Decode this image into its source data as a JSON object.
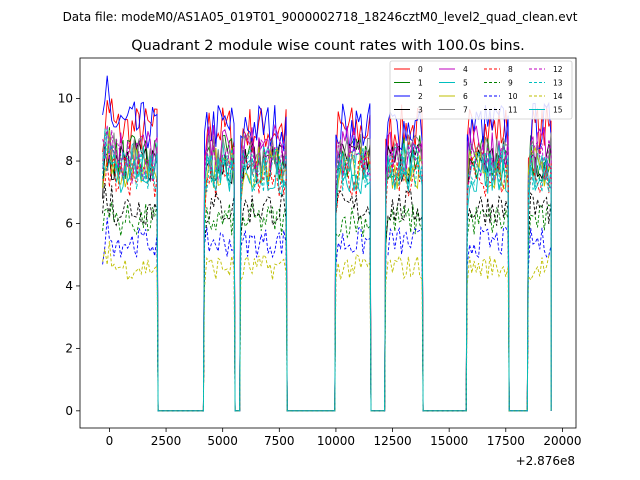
{
  "suptitle": "Data file: modeM0/AS1A05_019T01_9000002718_18246cztM0_level2_quad_clean.evt",
  "chart_data": {
    "type": "line",
    "title": "Quadrant 2 module wise count rates with 100.0s bins.",
    "xlabel": "",
    "ylabel": "",
    "x_offset_label": "+2.876e8",
    "xlim": [
      -1300,
      20600
    ],
    "ylim": [
      -0.55,
      11.3
    ],
    "xticks": [
      0,
      2500,
      5000,
      7500,
      10000,
      12500,
      15000,
      17500,
      20000
    ],
    "yticks": [
      0,
      2,
      4,
      6,
      8,
      10
    ],
    "grid": false,
    "legend_position": "top-right",
    "legend_columns": 4,
    "segments": [
      {
        "start": -300,
        "end": 2100,
        "drop_to": 2150
      },
      {
        "start": 4200,
        "end": 5500,
        "drop_to": 5550
      },
      {
        "start": 5800,
        "end": 7800,
        "drop_to": 7850
      },
      {
        "start": 10000,
        "end": 11500,
        "drop_to": 11550
      },
      {
        "start": 12200,
        "end": 13800,
        "drop_to": 13850
      },
      {
        "start": 15800,
        "end": 17600,
        "drop_to": 17650
      },
      {
        "start": 18500,
        "end": 19500,
        "drop_to": 19500
      }
    ],
    "series": [
      {
        "name": "0",
        "color": "#ff0000",
        "style": "solid",
        "level": 9.0
      },
      {
        "name": "1",
        "color": "#008000",
        "style": "solid",
        "level": 8.1
      },
      {
        "name": "2",
        "color": "#0000ff",
        "style": "solid",
        "level": 9.1
      },
      {
        "name": "3",
        "color": "#000000",
        "style": "solid",
        "level": 8.0
      },
      {
        "name": "4",
        "color": "#bf00bf",
        "style": "solid",
        "level": 8.4
      },
      {
        "name": "5",
        "color": "#00bfbf",
        "style": "solid",
        "level": 7.9
      },
      {
        "name": "6",
        "color": "#bfbf00",
        "style": "solid",
        "level": 7.8
      },
      {
        "name": "7",
        "color": "#808080",
        "style": "solid",
        "level": 8.2
      },
      {
        "name": "8",
        "color": "#ff0000",
        "style": "dashed",
        "level": 7.5
      },
      {
        "name": "9",
        "color": "#008000",
        "style": "dashed",
        "level": 6.1
      },
      {
        "name": "10",
        "color": "#0000ff",
        "style": "dashed",
        "level": 5.4
      },
      {
        "name": "11",
        "color": "#000000",
        "style": "dashed",
        "level": 6.5
      },
      {
        "name": "12",
        "color": "#bf00bf",
        "style": "dashed",
        "level": 8.0
      },
      {
        "name": "13",
        "color": "#00bfbf",
        "style": "dashed",
        "level": 7.7
      },
      {
        "name": "14",
        "color": "#bfbf00",
        "style": "dashed",
        "level": 4.6
      },
      {
        "name": "15",
        "color": "#00bfbf",
        "style": "solid",
        "level": 7.6
      }
    ]
  }
}
